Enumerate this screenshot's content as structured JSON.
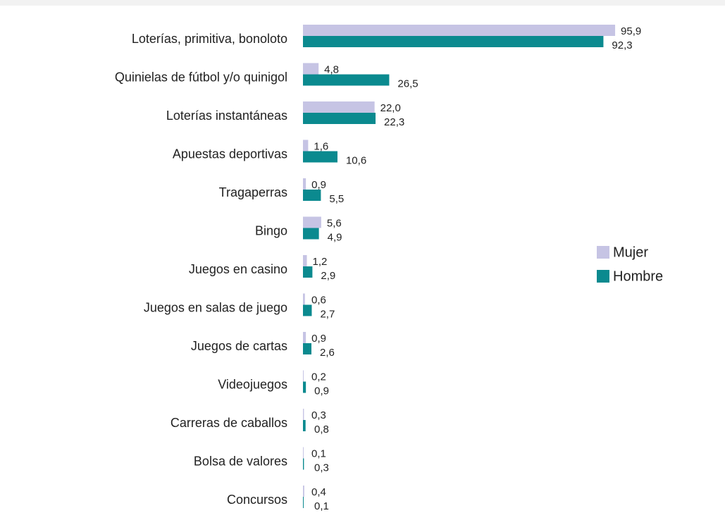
{
  "chart_data": {
    "type": "bar",
    "orientation": "horizontal",
    "categories": [
      "Loterías, primitiva, bonoloto",
      "Quinielas de fútbol y/o quinigol",
      "Loterías instantáneas",
      "Apuestas deportivas",
      "Tragaperras",
      "Bingo",
      "Juegos en casino",
      "Juegos en salas de juego",
      "Juegos de cartas",
      "Videojuegos",
      "Carreras de caballos",
      "Bolsa de valores",
      "Concursos"
    ],
    "series": [
      {
        "name": "Mujer",
        "color": "#c6c4e4",
        "values": [
          95.9,
          4.8,
          22.0,
          1.6,
          0.9,
          5.6,
          1.2,
          0.6,
          0.9,
          0.2,
          0.3,
          0.1,
          0.4
        ],
        "value_labels": [
          "95,9",
          "4,8",
          "22,0",
          "1,6",
          "0,9",
          "5,6",
          "1,2",
          "0,6",
          "0,9",
          "0,2",
          "0,3",
          "0,1",
          "0,4"
        ]
      },
      {
        "name": "Hombre",
        "color": "#0b8a8f",
        "values": [
          92.3,
          26.5,
          22.3,
          10.6,
          5.5,
          4.9,
          2.9,
          2.7,
          2.6,
          0.9,
          0.8,
          0.3,
          0.1
        ],
        "value_labels": [
          "92,3",
          "26,5",
          "22,3",
          "10,6",
          "5,5",
          "4,9",
          "2,9",
          "2,7",
          "2,6",
          "0,9",
          "0,8",
          "0,3",
          "0,1"
        ]
      }
    ],
    "xlim": [
      0,
      100
    ],
    "legend": "right"
  }
}
